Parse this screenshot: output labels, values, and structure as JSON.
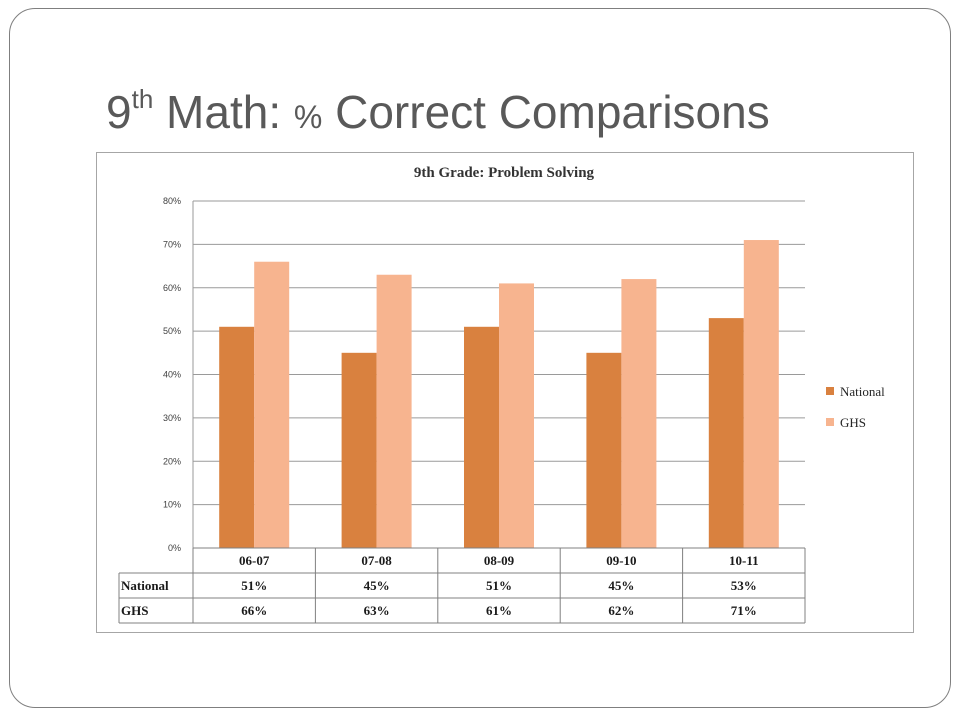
{
  "slide": {
    "title_prefix": "9",
    "title_sup": "th",
    "title_mid": " Math:  ",
    "title_pct": "%",
    "title_rest": " Correct Comparisons"
  },
  "chart_data": {
    "type": "bar",
    "title": "9th Grade: Problem Solving",
    "categories": [
      "06-07",
      "07-08",
      "08-09",
      "09-10",
      "10-11"
    ],
    "series": [
      {
        "name": "National",
        "values": [
          51,
          45,
          51,
          45,
          53
        ],
        "labels": [
          "51%",
          "45%",
          "51%",
          "45%",
          "53%"
        ],
        "color": "#d9813f"
      },
      {
        "name": "GHS",
        "values": [
          66,
          63,
          61,
          62,
          71
        ],
        "labels": [
          "66%",
          "63%",
          "61%",
          "62%",
          "71%"
        ],
        "color": "#f7b48f"
      }
    ],
    "ylim": [
      0,
      80
    ],
    "yticks": [
      "0%",
      "10%",
      "20%",
      "30%",
      "40%",
      "50%",
      "60%",
      "70%",
      "80%"
    ],
    "grid": true,
    "legend": "right",
    "data_table": true
  }
}
